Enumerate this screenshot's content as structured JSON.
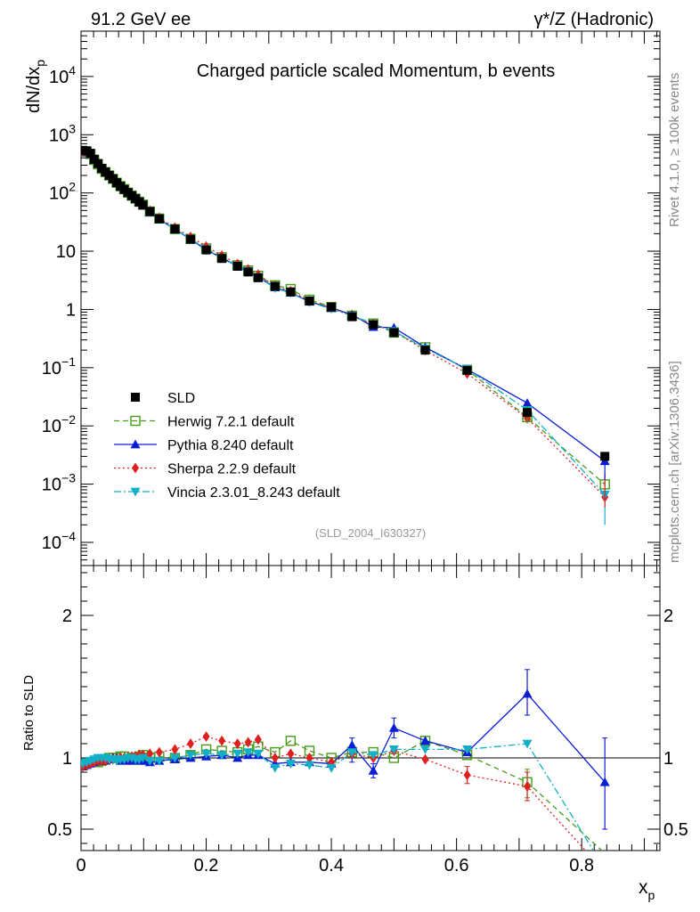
{
  "header": {
    "left": "91.2 GeV ee",
    "right": "γ*/Z (Hadronic)"
  },
  "side": {
    "top": "Rivet 4.1.0, ≥ 100k events",
    "bottom": "mcplots.cern.ch [arXiv:1306.3436]"
  },
  "chart_data": {
    "type": "line",
    "title": "Charged particle scaled Momentum, b events",
    "watermark": "(SLD_2004_I630327)",
    "ylabel": "dN/dx",
    "ylabel_sub": "p",
    "xlabel": "x",
    "xlabel_sub": "p",
    "ratio_ylabel": "Ratio to SLD",
    "ylog": true,
    "ylim": [
      4e-05,
      60000
    ],
    "xlim": [
      0,
      0.925
    ],
    "ratio_ylim": [
      0.35,
      2.35
    ],
    "y_ticks": [
      {
        "value": 0.0001,
        "base": "10",
        "exp": "−4"
      },
      {
        "value": 0.001,
        "base": "10",
        "exp": "−3"
      },
      {
        "value": 0.01,
        "base": "10",
        "exp": "−2"
      },
      {
        "value": 0.1,
        "base": "10",
        "exp": "−1"
      },
      {
        "value": 1,
        "base": "1",
        "exp": ""
      },
      {
        "value": 10,
        "base": "10",
        "exp": ""
      },
      {
        "value": 100,
        "base": "10",
        "exp": "2"
      },
      {
        "value": 1000,
        "base": "10",
        "exp": "3"
      },
      {
        "value": 10000,
        "base": "10",
        "exp": "4"
      }
    ],
    "x_ticks": [
      {
        "value": 0,
        "label": "0"
      },
      {
        "value": 0.2,
        "label": "0.2"
      },
      {
        "value": 0.4,
        "label": "0.4"
      },
      {
        "value": 0.6,
        "label": "0.6"
      },
      {
        "value": 0.8,
        "label": "0.8"
      }
    ],
    "ratio_ticks": [
      {
        "value": 0.5,
        "label": "0.5"
      },
      {
        "value": 1,
        "label": "1"
      },
      {
        "value": 2,
        "label": "2"
      }
    ],
    "x": [
      0.003,
      0.009,
      0.015,
      0.021,
      0.027,
      0.033,
      0.039,
      0.045,
      0.051,
      0.057,
      0.063,
      0.069,
      0.075,
      0.081,
      0.087,
      0.093,
      0.099,
      0.11,
      0.125,
      0.15,
      0.175,
      0.2,
      0.225,
      0.25,
      0.267,
      0.283,
      0.31,
      0.335,
      0.365,
      0.4,
      0.433,
      0.467,
      0.5,
      0.55,
      0.617,
      0.713,
      0.837
    ],
    "data": {
      "name": "SLD",
      "values": [
        540,
        530,
        480,
        380,
        320,
        265,
        230,
        200,
        175,
        150,
        130,
        115,
        102,
        90,
        80,
        70,
        62,
        48,
        36,
        24,
        16,
        10.5,
        7.5,
        5.5,
        4.4,
        3.5,
        2.5,
        2.0,
        1.4,
        1.1,
        0.75,
        0.55,
        0.4,
        0.2,
        0.09,
        0.017,
        0.003
      ]
    },
    "series": [
      {
        "name": "Herwig 7.2.1 default",
        "color": "#4a9a1a",
        "dash": "6,4",
        "marker": "square-open",
        "ratios": [
          0.95,
          0.96,
          0.97,
          0.97,
          0.97,
          0.98,
          0.99,
          1.0,
          1.0,
          1.0,
          1.01,
          1.01,
          0.99,
          1.0,
          1.0,
          1.01,
          1.02,
          1.0,
          1.01,
          1.0,
          1.02,
          1.06,
          1.05,
          1.04,
          1.06,
          1.08,
          1.04,
          1.12,
          1.05,
          1.0,
          1.04,
          1.04,
          1.0,
          1.12,
          1.02,
          0.83,
          0.33
        ]
      },
      {
        "name": "Pythia 8.240 default",
        "color": "#0a1ed6",
        "dash": "",
        "marker": "triangle-up",
        "ratios": [
          0.94,
          0.95,
          0.96,
          0.97,
          0.98,
          0.98,
          0.98,
          0.99,
          1.0,
          1.0,
          0.98,
          0.99,
          0.98,
          0.98,
          0.99,
          0.98,
          0.98,
          0.97,
          0.98,
          0.99,
          1.0,
          1.01,
          1.02,
          1.0,
          1.02,
          1.02,
          0.96,
          0.97,
          0.97,
          0.96,
          1.09,
          0.91,
          1.21,
          1.12,
          1.04,
          1.45,
          0.83
        ]
      },
      {
        "name": "Sherpa 2.2.9 default",
        "color": "#e02020",
        "dash": "2,3",
        "marker": "diamond",
        "ratios": [
          0.94,
          0.95,
          0.96,
          0.97,
          0.98,
          0.98,
          0.98,
          0.99,
          0.99,
          0.99,
          1.0,
          1.0,
          1.0,
          1.01,
          1.01,
          1.02,
          1.02,
          1.03,
          1.04,
          1.06,
          1.1,
          1.15,
          1.12,
          1.1,
          1.11,
          1.13,
          1.0,
          1.03,
          1.0,
          0.97,
          1.03,
          1.0,
          1.05,
          0.99,
          0.88,
          0.8,
          0.2
        ]
      },
      {
        "name": "Vincia 2.3.01_8.243 default",
        "color": "#12b0c8",
        "dash": "8,3,2,3",
        "marker": "triangle-down",
        "ratios": [
          0.96,
          0.97,
          0.98,
          0.99,
          1.0,
          1.0,
          1.0,
          0.99,
          0.99,
          0.98,
          0.99,
          0.99,
          1.0,
          1.0,
          0.99,
          0.99,
          1.0,
          0.98,
          0.98,
          1.0,
          1.02,
          1.03,
          1.02,
          1.03,
          1.04,
          1.03,
          0.93,
          0.96,
          0.95,
          0.93,
          1.04,
          1.02,
          1.06,
          1.06,
          1.06,
          1.1,
          0.22
        ]
      }
    ],
    "legend": [
      "SLD",
      "Herwig 7.2.1 default",
      "Pythia 8.240 default",
      "Sherpa 2.2.9 default",
      "Vincia 2.3.01_8.243 default"
    ]
  }
}
